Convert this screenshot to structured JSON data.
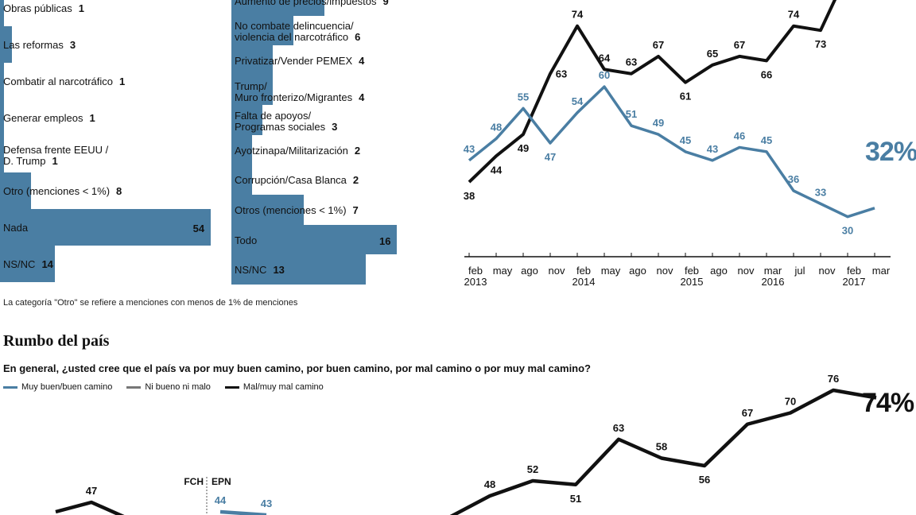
{
  "left_bars": {
    "items": [
      {
        "label": "Obras públicas",
        "value": "1"
      },
      {
        "label": "Las reformas",
        "value": "3"
      },
      {
        "label": "Combatir al narcotráfico",
        "value": "1"
      },
      {
        "label": "Generar empleos",
        "value": "1"
      },
      {
        "label": "Defensa frente EEUU / D. Trump",
        "value": "1"
      },
      {
        "label": "Otro (menciones < 1%)",
        "value": "8"
      },
      {
        "label": "Nada",
        "value": "54"
      },
      {
        "label": "NS/NC",
        "value": "14"
      }
    ]
  },
  "middle_bars": {
    "items": [
      {
        "label": "Aumento de precios/impuestos",
        "value": "9"
      },
      {
        "label": "No combate delincuencia/ violencia del narcotráfico",
        "value": "6"
      },
      {
        "label": "Privatizar/Vender PEMEX",
        "value": "4"
      },
      {
        "label": "Trump/ Muro fronterizo/Migrantes",
        "value": "4"
      },
      {
        "label": "Falta de apoyos/ Programas sociales",
        "value": "3"
      },
      {
        "label": "Ayotzinapa/Militarización",
        "value": "2"
      },
      {
        "label": "Corrupción/Casa Blanca",
        "value": "2"
      },
      {
        "label": "Otros (menciones < 1%)",
        "value": "7"
      },
      {
        "label": "Todo",
        "value": "16"
      },
      {
        "label": "NS/NC",
        "value": "13"
      }
    ]
  },
  "note": "La categoría \"Otro\" se refiere a menciones con menos de 1% de menciones",
  "section_title": "Rumbo del país",
  "question": "En general, ¿usted cree que el país va por muy buen camino, por buen camino, por mal camino o por muy mal camino?",
  "legend": {
    "good": "Muy buen/buen camino",
    "neutral": "Ni bueno ni malo",
    "bad": "Mal/muy mal camino"
  },
  "colors": {
    "blue": "#4a7ea3",
    "black": "#111111",
    "gray": "#777777"
  },
  "chart_data": [
    {
      "type": "bar",
      "orientation": "horizontal",
      "title": "",
      "categories": [
        "Obras públicas",
        "Las reformas",
        "Combatir al narcotráfico",
        "Generar empleos",
        "Defensa frente EEUU / D. Trump",
        "Otro (menciones < 1%)",
        "Nada",
        "NS/NC"
      ],
      "values": [
        1,
        3,
        1,
        1,
        1,
        8,
        54,
        14
      ]
    },
    {
      "type": "bar",
      "orientation": "horizontal",
      "title": "",
      "categories": [
        "Aumento de precios/impuestos",
        "No combate delincuencia/ violencia del narcotráfico",
        "Privatizar/Vender PEMEX",
        "Trump/ Muro fronterizo/Migrantes",
        "Falta de apoyos/ Programas sociales",
        "Ayotzinapa/Militarización",
        "Corrupción/Casa Blanca",
        "Otros (menciones < 1%)",
        "Todo",
        "NS/NC"
      ],
      "values": [
        9,
        6,
        4,
        4,
        3,
        2,
        2,
        7,
        16,
        13
      ]
    },
    {
      "type": "line",
      "title": "",
      "x_ticks": [
        {
          "month": "feb",
          "year": "2013"
        },
        {
          "month": "may",
          "year": ""
        },
        {
          "month": "ago",
          "year": ""
        },
        {
          "month": "nov",
          "year": ""
        },
        {
          "month": "feb",
          "year": "2014"
        },
        {
          "month": "may",
          "year": ""
        },
        {
          "month": "ago",
          "year": ""
        },
        {
          "month": "nov",
          "year": ""
        },
        {
          "month": "feb",
          "year": "2015"
        },
        {
          "month": "ago",
          "year": ""
        },
        {
          "month": "nov",
          "year": ""
        },
        {
          "month": "mar",
          "year": "2016"
        },
        {
          "month": "jul",
          "year": ""
        },
        {
          "month": "nov",
          "year": ""
        },
        {
          "month": "feb",
          "year": "2017"
        },
        {
          "month": "mar",
          "year": ""
        }
      ],
      "ylim": [
        25,
        80
      ],
      "series": [
        {
          "name": "black",
          "color": "#111111",
          "points": [
            {
              "x": 0,
              "y": 38,
              "label": "38",
              "pos": "below"
            },
            {
              "x": 1,
              "y": 44,
              "label": "44",
              "pos": "below"
            },
            {
              "x": 2,
              "y": 49,
              "label": "49",
              "pos": "below"
            },
            {
              "x": 3,
              "y": 63,
              "label": "63",
              "pos": "right"
            },
            {
              "x": 4,
              "y": 74,
              "label": "74",
              "pos": "above"
            },
            {
              "x": 5,
              "y": 64,
              "label": "64",
              "pos": "above"
            },
            {
              "x": 6,
              "y": 63,
              "label": "63",
              "pos": "above"
            },
            {
              "x": 7,
              "y": 67,
              "label": "67",
              "pos": "above"
            },
            {
              "x": 8,
              "y": 61,
              "label": "61",
              "pos": "below"
            },
            {
              "x": 9,
              "y": 65,
              "label": "65",
              "pos": "above"
            },
            {
              "x": 10,
              "y": 67,
              "label": "67",
              "pos": "above"
            },
            {
              "x": 11,
              "y": 66,
              "label": "66",
              "pos": "below"
            },
            {
              "x": 12,
              "y": 74,
              "label": "74",
              "pos": "above"
            },
            {
              "x": 13,
              "y": 73,
              "label": "73",
              "pos": "below"
            },
            {
              "x": 13.6,
              "y": 81,
              "label": "",
              "pos": "none"
            }
          ]
        },
        {
          "name": "blue",
          "color": "#4a7ea3",
          "points": [
            {
              "x": 0,
              "y": 43,
              "label": "43",
              "pos": "above"
            },
            {
              "x": 1,
              "y": 48,
              "label": "48",
              "pos": "above"
            },
            {
              "x": 2,
              "y": 55,
              "label": "55",
              "pos": "above"
            },
            {
              "x": 3,
              "y": 47,
              "label": "47",
              "pos": "below"
            },
            {
              "x": 4,
              "y": 54,
              "label": "54",
              "pos": "above"
            },
            {
              "x": 5,
              "y": 60,
              "label": "60",
              "pos": "above"
            },
            {
              "x": 6,
              "y": 51,
              "label": "51",
              "pos": "above"
            },
            {
              "x": 7,
              "y": 49,
              "label": "49",
              "pos": "above"
            },
            {
              "x": 8,
              "y": 45,
              "label": "45",
              "pos": "above"
            },
            {
              "x": 9,
              "y": 43,
              "label": "43",
              "pos": "above"
            },
            {
              "x": 10,
              "y": 46,
              "label": "46",
              "pos": "above"
            },
            {
              "x": 11,
              "y": 45,
              "label": "45",
              "pos": "above"
            },
            {
              "x": 12,
              "y": 36,
              "label": "36",
              "pos": "above"
            },
            {
              "x": 13,
              "y": 33,
              "label": "33",
              "pos": "above"
            },
            {
              "x": 14,
              "y": 30,
              "label": "30",
              "pos": "below"
            },
            {
              "x": 15,
              "y": 32,
              "label": "",
              "pos": "none"
            }
          ]
        }
      ],
      "end_label": {
        "text": "32%",
        "color": "#4a7ea3"
      }
    },
    {
      "type": "line",
      "title": "Rumbo del país",
      "series": [
        {
          "name": "Mal/muy mal camino",
          "color": "#111111",
          "points": [
            {
              "x": 0,
              "y": 42,
              "label": "",
              "pos": "none"
            },
            {
              "x": 1,
              "y": 48,
              "label": "48",
              "pos": "above"
            },
            {
              "x": 2,
              "y": 52,
              "label": "52",
              "pos": "above"
            },
            {
              "x": 3,
              "y": 51,
              "label": "51",
              "pos": "below"
            },
            {
              "x": 4,
              "y": 63,
              "label": "63",
              "pos": "above"
            },
            {
              "x": 5,
              "y": 58,
              "label": "58",
              "pos": "above"
            },
            {
              "x": 6,
              "y": 56,
              "label": "56",
              "pos": "below"
            },
            {
              "x": 7,
              "y": 67,
              "label": "67",
              "pos": "above"
            },
            {
              "x": 8,
              "y": 70,
              "label": "70",
              "pos": "above"
            },
            {
              "x": 9,
              "y": 76,
              "label": "76",
              "pos": "above"
            },
            {
              "x": 10,
              "y": 74,
              "label": "",
              "pos": "none"
            }
          ]
        }
      ],
      "ylim": [
        40,
        80
      ],
      "end_label": {
        "text": "74%",
        "color": "#111111"
      }
    },
    {
      "type": "line",
      "title": "",
      "period_labels": {
        "left": "FCH",
        "right": "EPN"
      },
      "series": [
        {
          "name": "Mal/muy mal camino",
          "color": "#111111",
          "points": [
            {
              "x": 0,
              "y": 44,
              "label": "",
              "pos": "none"
            },
            {
              "x": 1,
              "y": 47,
              "label": "47",
              "pos": "above"
            },
            {
              "x": 2,
              "y": 42,
              "label": "",
              "pos": "none"
            }
          ]
        },
        {
          "name": "Muy buen/buen camino",
          "color": "#4a7ea3",
          "points": [
            {
              "x": 3,
              "y": 44,
              "label": "44",
              "pos": "above"
            },
            {
              "x": 4,
              "y": 43,
              "label": "43",
              "pos": "above"
            }
          ]
        }
      ],
      "ylim": [
        40,
        50
      ]
    }
  ]
}
